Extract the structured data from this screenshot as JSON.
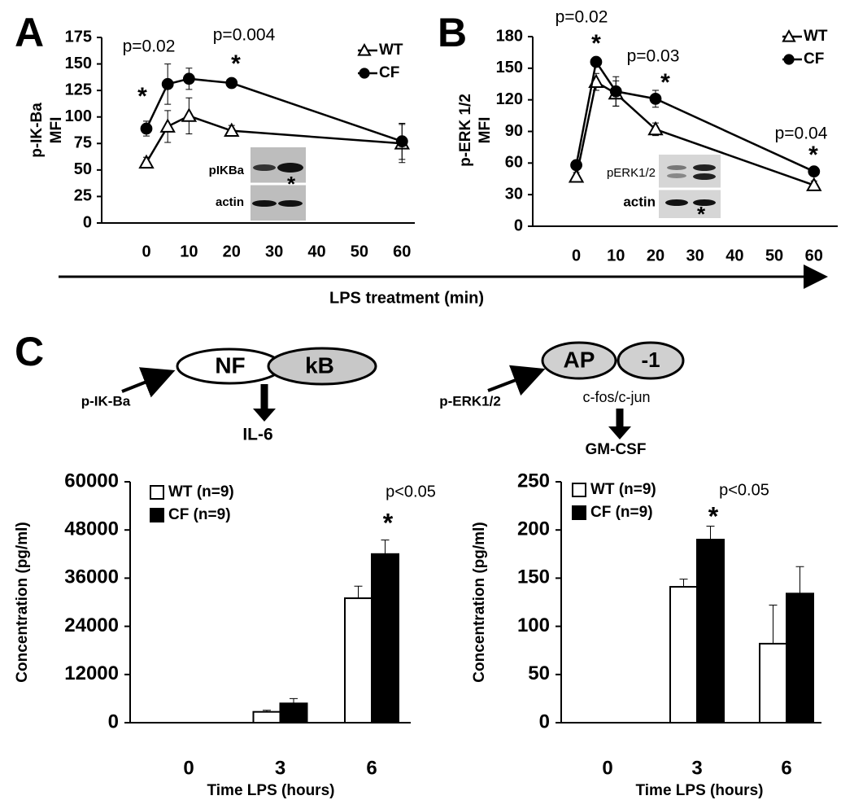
{
  "panel_labels": [
    "A",
    "B",
    "C"
  ],
  "shared_x_label": "LPS treatment (min)",
  "diagram": {
    "nodes": [
      {
        "label": "NF"
      },
      {
        "label": "kB"
      },
      {
        "label": "AP"
      },
      {
        "label": "-1"
      }
    ],
    "inputs": [
      "p-IK-Ba",
      "p-ERK1/2"
    ],
    "complex_note": "c-fos/c-jun",
    "outputs": [
      "IL-6",
      "GM-CSF"
    ]
  },
  "chart_data": [
    {
      "type": "line",
      "ylabel": [
        "p-IK-Ba",
        "MFI"
      ],
      "x": [
        0,
        5,
        10,
        20,
        60
      ],
      "xlim": [
        -10.5,
        63
      ],
      "xticks": [
        0,
        10,
        20,
        30,
        40,
        50,
        60
      ],
      "ylim": [
        0,
        175
      ],
      "yticks": [
        0,
        25,
        50,
        75,
        100,
        125,
        150,
        175
      ],
      "series": [
        {
          "name": "WT",
          "color": "#000000",
          "marker": "triangle",
          "filled": false,
          "values": [
            57,
            91,
            101,
            87,
            75
          ],
          "errors": [
            5,
            15,
            17,
            5,
            18
          ]
        },
        {
          "name": "CF",
          "color": "#000000",
          "marker": "circle",
          "filled": true,
          "values": [
            89,
            131,
            136,
            132,
            77
          ],
          "errors": [
            7,
            19,
            10,
            4,
            17
          ]
        }
      ],
      "annotations": [
        "p=0.02",
        "p=0.004",
        "*",
        "*"
      ],
      "inset_labels": [
        "pIKBa",
        "actin",
        "*"
      ]
    },
    {
      "type": "line",
      "ylabel": [
        "p-ERK 1/2",
        "MFI"
      ],
      "x": [
        0,
        5,
        10,
        20,
        60
      ],
      "xlim": [
        -11,
        66
      ],
      "xticks": [
        0,
        10,
        20,
        30,
        40,
        50,
        60
      ],
      "ylim": [
        0,
        180
      ],
      "yticks": [
        0,
        30,
        60,
        90,
        120,
        150,
        180
      ],
      "series": [
        {
          "name": "WT",
          "color": "#000000",
          "marker": "triangle",
          "filled": false,
          "values": [
            47,
            137,
            126,
            92,
            39
          ],
          "errors": [
            4,
            8,
            12,
            6,
            4
          ]
        },
        {
          "name": "CF",
          "color": "#000000",
          "marker": "circle",
          "filled": true,
          "values": [
            58,
            156,
            128,
            121,
            52
          ],
          "errors": [
            3,
            3,
            14,
            8,
            4
          ]
        }
      ],
      "annotations": [
        "p=0.02",
        "*",
        "p=0.03",
        "*",
        "p=0.04",
        "*"
      ],
      "inset_labels": [
        "pERK1/2",
        "actin",
        "*"
      ]
    },
    {
      "type": "bar",
      "ylabel": [
        "Concentration (pg/ml)"
      ],
      "xlabel": "Time LPS (hours)",
      "categories": [
        "0",
        "3",
        "6"
      ],
      "ylim": [
        0,
        60000
      ],
      "yticks": [
        0,
        12000,
        24000,
        36000,
        48000,
        60000
      ],
      "series": [
        {
          "name": "WT (n=9)",
          "color": "#ffffff",
          "edgecolor": "#000000",
          "values": [
            0,
            2700,
            31000
          ],
          "errors": [
            0,
            400,
            3000
          ]
        },
        {
          "name": "CF (n=9)",
          "color": "#000000",
          "edgecolor": "#000000",
          "values": [
            0,
            4800,
            42000
          ],
          "errors": [
            0,
            1200,
            3500
          ]
        }
      ],
      "annotations": [
        "p<0.05",
        "*"
      ]
    },
    {
      "type": "bar",
      "ylabel": [
        "Concentration (pg/ml)"
      ],
      "xlabel": "Time LPS (hours)",
      "categories": [
        "0",
        "3",
        "6"
      ],
      "ylim": [
        0,
        250
      ],
      "yticks": [
        0,
        50,
        100,
        150,
        200,
        250
      ],
      "series": [
        {
          "name": "WT (n=9)",
          "color": "#ffffff",
          "edgecolor": "#000000",
          "values": [
            0,
            141,
            82
          ],
          "errors": [
            0,
            8,
            40
          ]
        },
        {
          "name": "CF (n=9)",
          "color": "#000000",
          "edgecolor": "#000000",
          "values": [
            0,
            190,
            134
          ],
          "errors": [
            0,
            14,
            28
          ]
        }
      ],
      "annotations": [
        "p<0.05",
        "*"
      ]
    }
  ]
}
